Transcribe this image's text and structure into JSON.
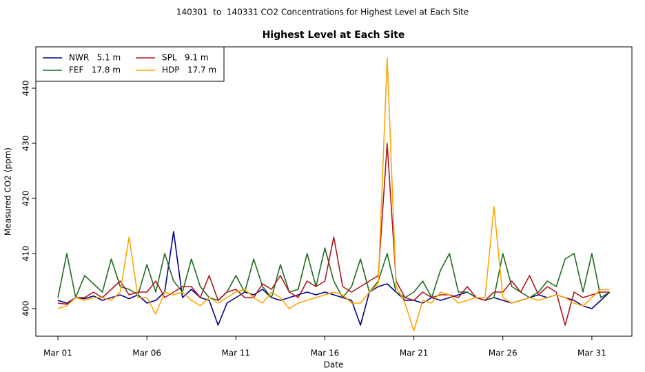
{
  "chart_data": {
    "type": "line",
    "title": "140301  to  140331 CO2 Concentrations for Highest Level at Each Site",
    "subtitle": "Highest Level at Each Site",
    "x_label": "Date",
    "y_label": "Measured CO2 (ppm)",
    "xlim": [
      -0.24,
      33.25
    ],
    "ylim": [
      395,
      447.5
    ],
    "xticks": [
      {
        "value": 1,
        "label": "Mar 01"
      },
      {
        "value": 6,
        "label": "Mar 06"
      },
      {
        "value": 11,
        "label": "Mar 11"
      },
      {
        "value": 16,
        "label": "Mar 16"
      },
      {
        "value": 21,
        "label": "Mar 21"
      },
      {
        "value": 26,
        "label": "Mar 26"
      },
      {
        "value": 31,
        "label": "Mar 31"
      }
    ],
    "yticks": [
      400,
      410,
      420,
      430,
      440
    ],
    "legend_position": "top-left",
    "x": [
      1,
      1.5,
      2,
      2.5,
      3,
      3.5,
      4,
      4.5,
      5,
      5.5,
      6,
      6.5,
      7,
      7.5,
      8,
      8.5,
      9,
      9.5,
      10,
      10.5,
      11,
      11.5,
      12,
      12.5,
      13,
      13.5,
      14,
      14.5,
      15,
      15.5,
      16,
      16.5,
      17,
      17.5,
      18,
      18.5,
      19,
      19.5,
      20,
      20.5,
      21,
      21.5,
      22,
      22.5,
      23,
      23.5,
      24,
      24.5,
      25,
      25.5,
      26,
      26.5,
      27,
      27.5,
      28,
      28.5,
      29,
      29.5,
      30,
      30.5,
      31,
      31.5,
      32
    ],
    "series": [
      {
        "name": "NWR   5.1 m",
        "color": "#00008b",
        "values": [
          401.5,
          401,
          402,
          401.8,
          402.3,
          401.5,
          402,
          402.5,
          401.8,
          402.5,
          401,
          401.5,
          403,
          414,
          402,
          403.5,
          402,
          401.5,
          397,
          401,
          402,
          403,
          402.5,
          403.5,
          402,
          401.5,
          402,
          402.5,
          403,
          402.5,
          403,
          402.5,
          402,
          401.5,
          397,
          403,
          404,
          404.5,
          403,
          401.5,
          401.5,
          401,
          402,
          401.5,
          402,
          402.5,
          403,
          402,
          401.5,
          402,
          401.5,
          401,
          401.5,
          402,
          402.5,
          402,
          402.5,
          402,
          401.5,
          400.5,
          400,
          401.5,
          403
        ]
      },
      {
        "name": "FEF   17.8 m",
        "color": "#1f6b1f",
        "values": [
          402,
          410,
          402,
          406,
          404.5,
          403,
          409,
          404,
          403.5,
          402.5,
          408,
          403,
          410,
          405,
          403,
          409,
          404,
          402,
          401.5,
          403,
          406,
          403,
          409,
          404,
          402,
          408,
          403,
          403.5,
          410,
          404,
          411,
          405,
          402,
          404,
          409,
          403,
          405,
          410,
          403,
          402,
          403,
          405,
          402,
          407,
          410,
          403,
          403,
          402,
          401.5,
          402,
          410,
          404,
          403,
          402,
          403,
          405,
          404,
          409,
          410,
          403,
          410,
          402,
          403
        ]
      },
      {
        "name": "SPL   9.1 m",
        "color": "#b0141e",
        "values": [
          401,
          400.8,
          402,
          402,
          403,
          402,
          403.5,
          405,
          402.5,
          403,
          403,
          405,
          402,
          403,
          404,
          404,
          402,
          406,
          401.5,
          403,
          403.5,
          402,
          402,
          404.5,
          403.5,
          406,
          403,
          402,
          405,
          404,
          405,
          413,
          404,
          403,
          404,
          405,
          406,
          430,
          405,
          402,
          401.5,
          403,
          402,
          402.5,
          402.5,
          402,
          404,
          402,
          401.5,
          403,
          403,
          405,
          403,
          406,
          402.5,
          404,
          403,
          397,
          403,
          402,
          402.5,
          403,
          403
        ]
      },
      {
        "name": "HDP   17.7 m",
        "color": "#ffa500",
        "values": [
          400,
          400.5,
          402,
          401.5,
          402,
          402,
          401.5,
          403,
          413,
          402,
          402,
          399,
          403,
          402.5,
          403,
          401.5,
          400.5,
          402,
          401,
          402,
          403,
          403.5,
          402,
          401,
          403,
          402,
          400,
          401,
          401.5,
          402,
          402.5,
          403,
          402.5,
          401,
          401,
          403,
          404.5,
          445.5,
          404,
          401,
          396,
          401.5,
          401,
          403,
          402.5,
          401,
          401.5,
          402,
          402,
          418.5,
          402,
          401,
          401.5,
          402,
          401.5,
          402,
          402.5,
          402,
          401,
          400.5,
          402,
          403.5,
          403.5
        ]
      }
    ]
  }
}
